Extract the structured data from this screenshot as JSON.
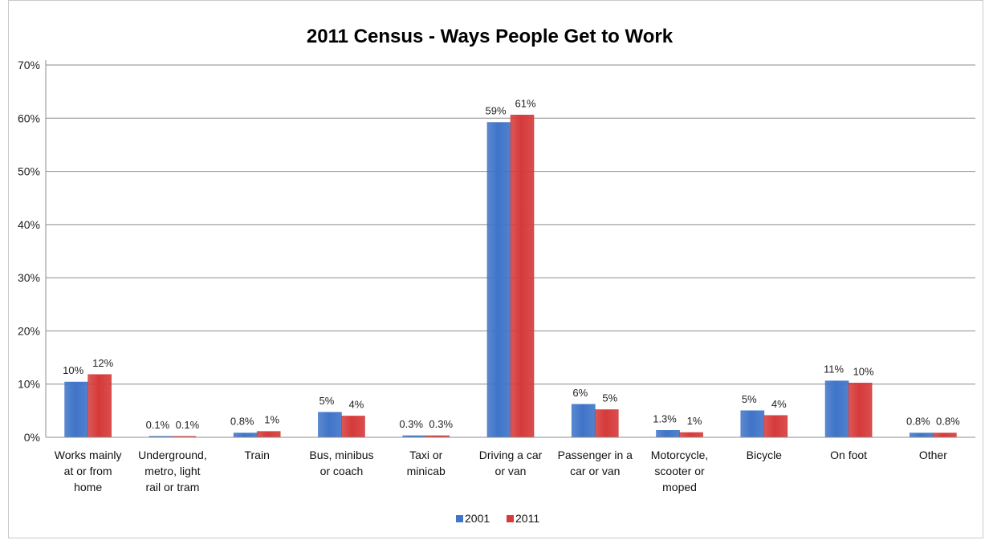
{
  "chart_data": {
    "type": "bar",
    "title": "2011 Census - Ways People Get to Work",
    "categories": [
      "Works mainly at or from home",
      "Underground, metro, light rail or tram",
      "Train",
      "Bus, minibus or coach",
      "Taxi or minicab",
      "Driving a car or van",
      "Passenger in a car or van",
      "Motorcycle, scooter or moped",
      "Bicycle",
      "On foot",
      "Other"
    ],
    "category_lines": [
      [
        "Works mainly",
        "at or from",
        "home"
      ],
      [
        "Underground,",
        "metro, light",
        "rail or tram"
      ],
      [
        "Train"
      ],
      [
        "Bus, minibus",
        "or coach"
      ],
      [
        "Taxi or",
        "minicab"
      ],
      [
        "Driving a car",
        "or van"
      ],
      [
        "Passenger in a",
        "car or van"
      ],
      [
        "Motorcycle,",
        "scooter or",
        "moped"
      ],
      [
        "Bicycle"
      ],
      [
        "On foot"
      ],
      [
        "Other"
      ]
    ],
    "series": [
      {
        "name": "2001",
        "color": "#3f74c8",
        "values": [
          10.4,
          0.1,
          0.8,
          4.7,
          0.3,
          59.2,
          6.2,
          1.3,
          5.0,
          10.6,
          0.8
        ],
        "labels": [
          "10%",
          "0.1%",
          "0.8%",
          "5%",
          "0.3%",
          "59%",
          "6%",
          "1.3%",
          "5%",
          "11%",
          "0.8%"
        ]
      },
      {
        "name": "2011",
        "color": "#d63a3a",
        "values": [
          11.8,
          0.1,
          1.1,
          4.0,
          0.3,
          60.6,
          5.2,
          0.9,
          4.1,
          10.2,
          0.8
        ],
        "labels": [
          "12%",
          "0.1%",
          "1%",
          "4%",
          "0.3%",
          "61%",
          "5%",
          "1%",
          "4%",
          "10%",
          "0.8%"
        ]
      }
    ],
    "yticks": [
      "0%",
      "10%",
      "20%",
      "30%",
      "40%",
      "50%",
      "60%",
      "70%"
    ],
    "ylim": [
      0,
      70
    ],
    "grid": true,
    "legend": "bottom-center"
  }
}
